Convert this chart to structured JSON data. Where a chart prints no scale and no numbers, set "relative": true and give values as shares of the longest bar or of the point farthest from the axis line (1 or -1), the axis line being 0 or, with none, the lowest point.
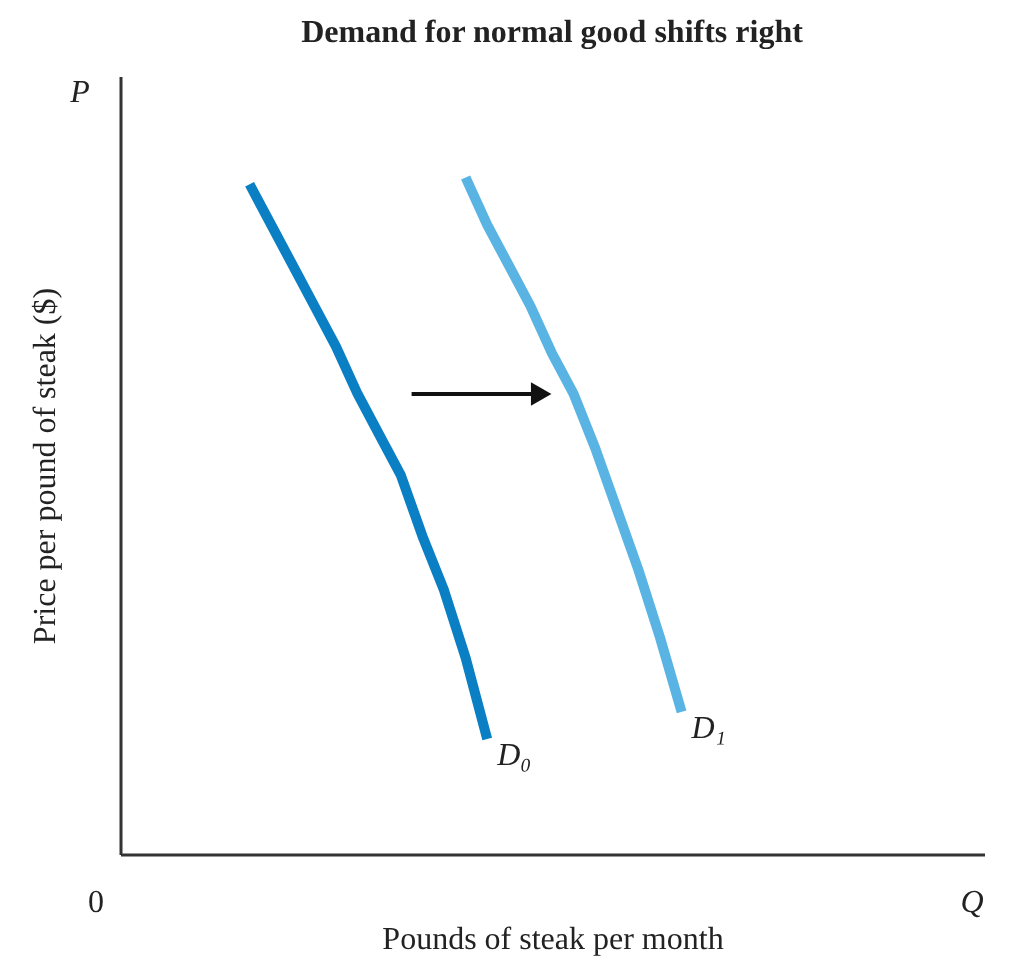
{
  "chart_data": {
    "type": "line",
    "title": "Demand for normal good shifts right",
    "xlabel": "Pounds of steak per month",
    "ylabel": "Price per pound of steak ($)",
    "relative": true,
    "legend": false,
    "annotations": [
      "P",
      "Q",
      "0"
    ],
    "categories": [
      null,
      null,
      null,
      null,
      null,
      null,
      null,
      null,
      null,
      null,
      null,
      null,
      null,
      null,
      null,
      null,
      null,
      null,
      null,
      null,
      null,
      null,
      null,
      null,
      null,
      null,
      null,
      null,
      null,
      null,
      null,
      null,
      null,
      null,
      null,
      null,
      null,
      null,
      null,
      null,
      null
    ],
    "series": [
      {
        "name": "D₀",
        "color": "#0a7fc4",
        "values": [
          null,
          null,
          null,
          null,
          null,
          null,
          0.99,
          0.93,
          0.87,
          0.81,
          0.75,
          0.68,
          0.62,
          0.56,
          0.47,
          0.39,
          0.29,
          0.17,
          null,
          null,
          null,
          null,
          null,
          null,
          null,
          null,
          null,
          null,
          null,
          null,
          null,
          null,
          null,
          null,
          null,
          null,
          null,
          null,
          null,
          null,
          null
        ]
      },
      {
        "name": "D₁",
        "color": "#5ab4e3",
        "values": [
          null,
          null,
          null,
          null,
          null,
          null,
          null,
          null,
          null,
          null,
          null,
          null,
          null,
          null,
          null,
          null,
          1.0,
          0.93,
          0.87,
          0.81,
          0.74,
          0.68,
          0.6,
          0.51,
          0.42,
          0.32,
          0.21,
          null,
          null,
          null,
          null,
          null,
          null,
          null,
          null,
          null,
          null,
          null,
          null,
          null,
          null
        ]
      }
    ]
  }
}
